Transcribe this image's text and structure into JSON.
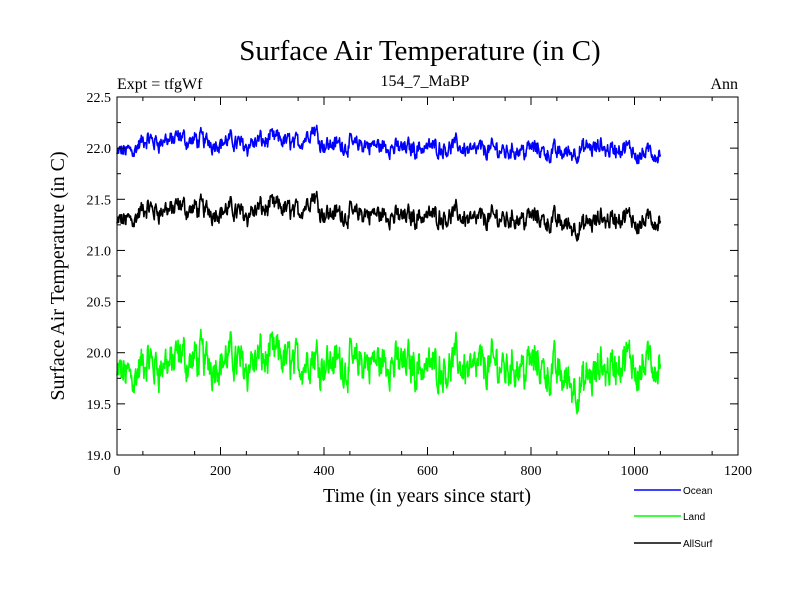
{
  "chart_data": {
    "type": "line",
    "title": "Surface Air Temperature (in C)",
    "subtitle": "154_7_MaBP",
    "left_label": "Expt = tfgWf",
    "right_label": "Ann",
    "xlabel": "Time (in years since start)",
    "ylabel": "Surface Air Temperature (in C)",
    "xlim": [
      0,
      1200
    ],
    "ylim": [
      19.0,
      22.5
    ],
    "xticks": [
      0,
      200,
      400,
      600,
      800,
      1000,
      1200
    ],
    "xtick_labels": [
      "0",
      "200",
      "400",
      "600",
      "800",
      "1000",
      "1200"
    ],
    "yticks": [
      19.0,
      19.5,
      20.0,
      20.5,
      21.0,
      21.5,
      22.0,
      22.5
    ],
    "ytick_labels": [
      "19.0",
      "19.5",
      "20.0",
      "20.5",
      "21.0",
      "21.5",
      "22.0",
      "22.5"
    ],
    "grid": false,
    "legend_position": "bottom-right",
    "series": [
      {
        "name": "Ocean",
        "color": "#0000ff",
        "x": [
          0,
          50,
          100,
          150,
          200,
          250,
          300,
          350,
          380,
          400,
          450,
          500,
          550,
          600,
          650,
          700,
          750,
          800,
          850,
          900,
          950,
          1000,
          1050
        ],
        "values": [
          21.93,
          22.05,
          22.08,
          22.07,
          22.07,
          22.05,
          22.08,
          22.05,
          22.2,
          22.05,
          22.03,
          22.02,
          22.0,
          22.02,
          22.02,
          21.98,
          21.98,
          22.0,
          21.95,
          21.98,
          22.0,
          21.97,
          21.93
        ]
      },
      {
        "name": "Land",
        "color": "#00ff00",
        "x": [
          0,
          50,
          100,
          150,
          200,
          250,
          300,
          350,
          380,
          400,
          450,
          500,
          550,
          600,
          650,
          700,
          750,
          800,
          850,
          900,
          950,
          1000,
          1050
        ],
        "values": [
          19.75,
          19.85,
          19.9,
          19.92,
          19.95,
          19.92,
          19.95,
          19.9,
          19.98,
          19.95,
          19.88,
          19.9,
          19.9,
          19.88,
          19.9,
          19.85,
          19.88,
          19.9,
          19.8,
          19.65,
          19.88,
          19.9,
          19.87
        ]
      },
      {
        "name": "AllSurf",
        "color": "#000000",
        "x": [
          0,
          50,
          100,
          150,
          200,
          250,
          300,
          350,
          380,
          400,
          450,
          500,
          550,
          600,
          650,
          700,
          750,
          800,
          850,
          900,
          950,
          1000,
          1050
        ],
        "values": [
          21.25,
          21.38,
          21.4,
          21.4,
          21.4,
          21.38,
          21.42,
          21.38,
          21.55,
          21.38,
          21.35,
          21.35,
          21.33,
          21.35,
          21.35,
          21.3,
          21.32,
          21.33,
          21.28,
          21.22,
          21.32,
          21.3,
          21.28
        ]
      }
    ]
  }
}
